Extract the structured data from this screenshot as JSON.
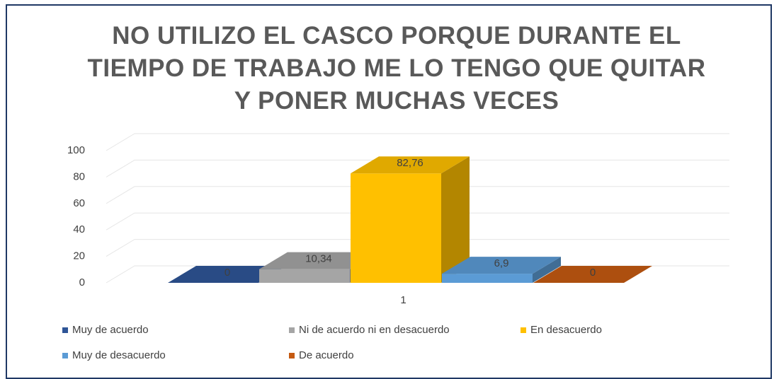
{
  "chart_data": {
    "type": "bar3d",
    "title": "NO UTILIZO EL CASCO PORQUE DURANTE EL TIEMPO DE TRABAJO ME LO TENGO QUE QUITAR Y PONER MUCHAS VECES",
    "categories": [
      "1"
    ],
    "series": [
      {
        "name": "Muy de acuerdo",
        "color": "#2f5597",
        "values": [
          0
        ]
      },
      {
        "name": "Ni de acuerdo ni en desacuerdo",
        "color": "#a5a5a5",
        "values": [
          10.34
        ],
        "value_labels": [
          "10,34"
        ]
      },
      {
        "name": "En desacuerdo",
        "color": "#ffc000",
        "values": [
          82.76
        ],
        "value_labels": [
          "82,76"
        ]
      },
      {
        "name": "Muy de desacuerdo",
        "color": "#5b9bd5",
        "values": [
          6.9
        ],
        "value_labels": [
          "6,9"
        ]
      },
      {
        "name": "De acuerdo",
        "color": "#c55a11",
        "values": [
          0
        ]
      }
    ],
    "ylim": [
      0,
      100
    ],
    "yticks": [
      0,
      20,
      40,
      60,
      80,
      100
    ],
    "grid": true,
    "legend": "bottom"
  }
}
